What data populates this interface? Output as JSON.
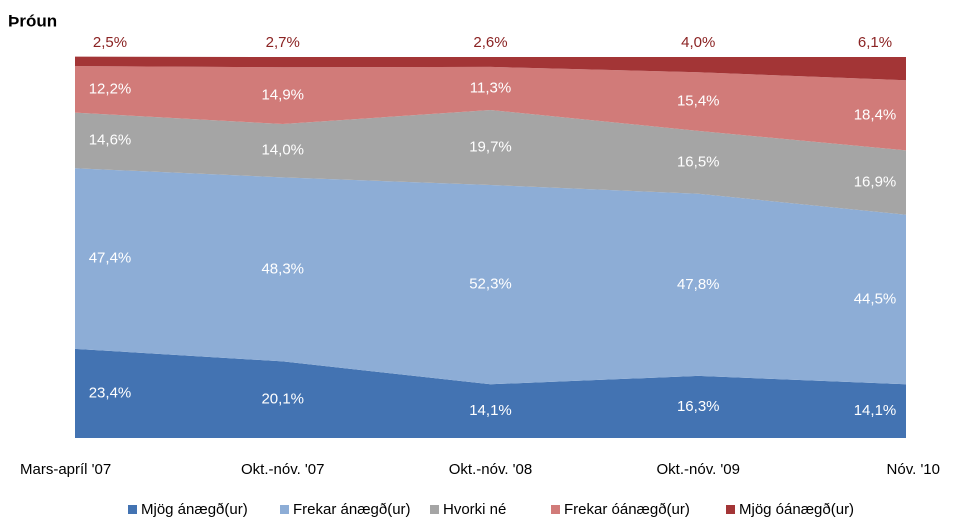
{
  "chart_data": {
    "type": "stacked_area",
    "title": "Þróun",
    "categories": [
      "Mars-apríl '07",
      "Okt.-nóv. '07",
      "Okt.-nóv. '08",
      "Okt.-nóv. '09",
      "Nóv. '10"
    ],
    "ylim": [
      0,
      100
    ],
    "series": [
      {
        "name": "Mjög ánægð(ur)",
        "color": "#4373b2",
        "values": [
          23.4,
          20.1,
          14.1,
          16.3,
          14.1
        ],
        "value_labels": [
          "23,4%",
          "20,1%",
          "14,1%",
          "16,3%",
          "14,1%"
        ]
      },
      {
        "name": "Frekar ánægð(ur)",
        "color": "#8dadd6",
        "values": [
          47.4,
          48.3,
          52.3,
          47.8,
          44.5
        ],
        "value_labels": [
          "47,4%",
          "48,3%",
          "52,3%",
          "47,8%",
          "44,5%"
        ]
      },
      {
        "name": "Hvorki né",
        "color": "#a5a5a5",
        "values": [
          14.6,
          14.0,
          19.7,
          16.5,
          16.9
        ],
        "value_labels": [
          "14,6%",
          "14,0%",
          "19,7%",
          "16,5%",
          "16,9%"
        ]
      },
      {
        "name": "Frekar óánægð(ur)",
        "color": "#d17b79",
        "values": [
          12.2,
          14.9,
          11.3,
          15.4,
          18.4
        ],
        "value_labels": [
          "12,2%",
          "14,9%",
          "11,3%",
          "15,4%",
          "18,4%"
        ]
      },
      {
        "name": "Mjög óánægð(ur)",
        "color": "#a33536",
        "values": [
          2.5,
          2.7,
          2.6,
          4.0,
          6.1
        ],
        "value_labels": [
          "2,5%",
          "2,7%",
          "2,6%",
          "4,0%",
          "6,1%"
        ]
      }
    ]
  }
}
